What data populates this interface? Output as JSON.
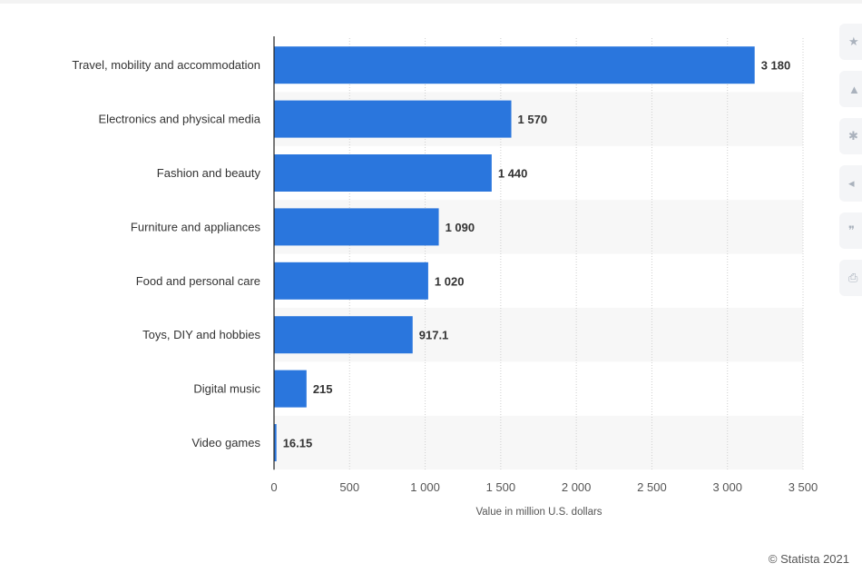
{
  "chart_data": {
    "type": "bar",
    "orientation": "horizontal",
    "categories": [
      "Travel, mobility and accommodation",
      "Electronics and physical media",
      "Fashion and beauty",
      "Furniture and appliances",
      "Food and personal care",
      "Toys, DIY and hobbies",
      "Digital music",
      "Video games"
    ],
    "values": [
      3180,
      1570,
      1440,
      1090,
      1020,
      917.1,
      215,
      16.15
    ],
    "value_labels": [
      "3 180",
      "1 570",
      "1 440",
      "1 090",
      "1 020",
      "917.1",
      "215",
      "16.15"
    ],
    "xlim": [
      0,
      3500
    ],
    "xticks": [
      0,
      500,
      1000,
      1500,
      2000,
      2500,
      3000,
      3500
    ],
    "xtick_labels": [
      "0",
      "500",
      "1 000",
      "1 500",
      "2 000",
      "2 500",
      "3 000",
      "3 500"
    ],
    "xlabel": "Value in million U.S. dollars",
    "ylabel": "",
    "title": "",
    "grid": "vertical dotted",
    "bar_color": "#2a76dd",
    "alt_row_color": "#f7f7f7"
  },
  "toolbar": {
    "icons": [
      "star-icon",
      "bell-icon",
      "gear-icon",
      "share-icon",
      "quote-icon",
      "print-icon"
    ]
  },
  "footer": {
    "copyright": "© Statista 2021"
  }
}
